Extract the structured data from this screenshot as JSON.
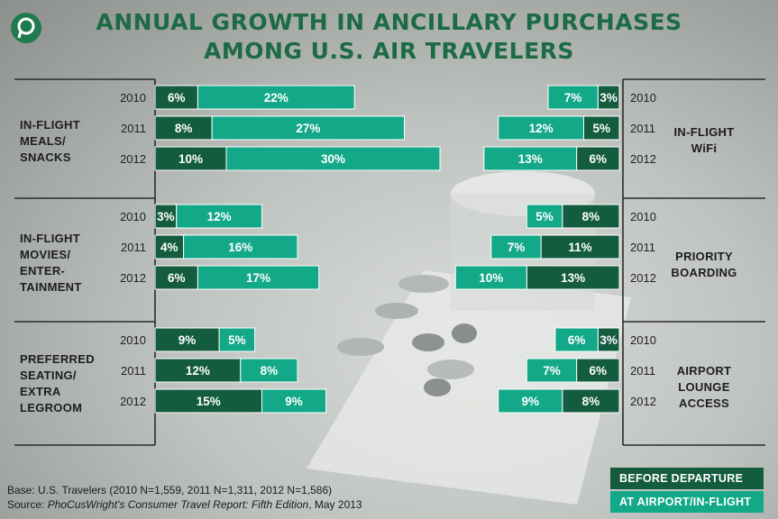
{
  "header": {
    "title_line1": "ANNUAL GROWTH IN ANCILLARY PURCHASES",
    "title_line2": "AMONG U.S. AIR TRAVELERS"
  },
  "colors": {
    "before_departure": "#145c3f",
    "airport_inflight": "#12a888",
    "title": "#1c6b45"
  },
  "legend": [
    {
      "name": "BEFORE DEPARTURE",
      "color": "#145c3f"
    },
    {
      "name": "AT AIRPORT/IN-FLIGHT",
      "color": "#12a888"
    }
  ],
  "footer": {
    "base": "Base: U.S. Travelers (2010 N=1,559, 2011 N=1,311, 2012 N=1,586)",
    "source_prefix": "Source: ",
    "source_italic": "PhoCusWright's Consumer Travel Report: Fifth Edition",
    "source_suffix": ", May 2013"
  },
  "chart_data": {
    "type": "bar",
    "stacked": true,
    "years": [
      "2010",
      "2011",
      "2012"
    ],
    "series_names": [
      "BEFORE DEPARTURE",
      "AT AIRPORT/IN-FLIGHT"
    ],
    "left_panels": [
      {
        "label": [
          "IN-FLIGHT",
          "MEALS/",
          "SNACKS"
        ],
        "before": [
          6,
          8,
          10
        ],
        "airport": [
          22,
          27,
          30
        ]
      },
      {
        "label": [
          "IN-FLIGHT",
          "MOVIES/",
          "ENTER-",
          "TAINMENT"
        ],
        "before": [
          3,
          4,
          6
        ],
        "airport": [
          12,
          16,
          17
        ]
      },
      {
        "label": [
          "PREFERRED",
          "SEATING/",
          "EXTRA",
          "LEGROOM"
        ],
        "before": [
          9,
          12,
          15
        ],
        "airport": [
          5,
          8,
          9
        ]
      }
    ],
    "right_panels": [
      {
        "label": [
          "IN-FLIGHT",
          "WiFi"
        ],
        "before": [
          3,
          5,
          6
        ],
        "airport": [
          7,
          12,
          13
        ]
      },
      {
        "label": [
          "PRIORITY",
          "BOARDING"
        ],
        "before": [
          8,
          11,
          13
        ],
        "airport": [
          5,
          7,
          10
        ]
      },
      {
        "label": [
          "AIRPORT",
          "LOUNGE",
          "ACCESS"
        ],
        "before": [
          3,
          6,
          8
        ],
        "airport": [
          6,
          7,
          9
        ]
      }
    ]
  }
}
